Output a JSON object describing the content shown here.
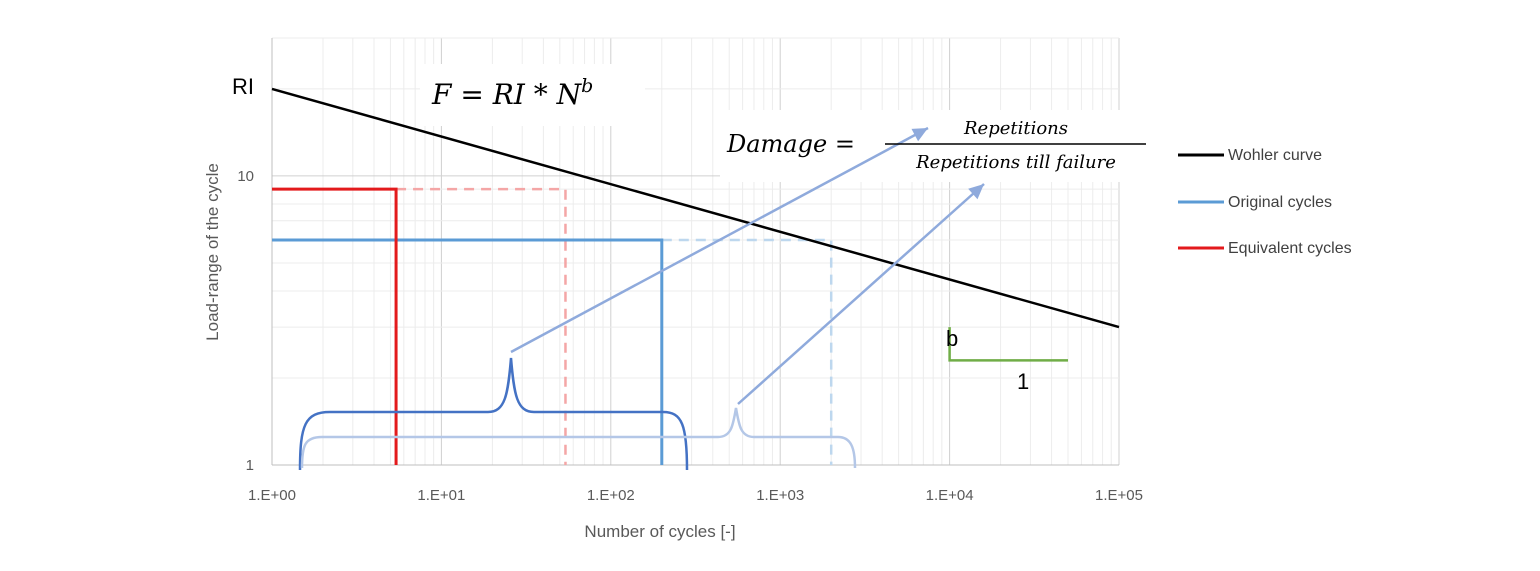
{
  "chart_data": {
    "type": "line",
    "xlabel": "Number of cycles [-]",
    "ylabel": "Load-range of the cycle",
    "x_scale": "log",
    "y_scale": "log",
    "xlim": [
      1,
      100000
    ],
    "ylim": [
      1,
      30
    ],
    "x_ticks": [
      "1.E+00",
      "1.E+01",
      "1.E+02",
      "1.E+03",
      "1.E+04",
      "1.E+05"
    ],
    "y_ticks": [
      "1",
      "10"
    ],
    "grid": true,
    "legend_position": "right",
    "series": [
      {
        "name": "Wohler curve",
        "color": "#000000",
        "x": [
          1,
          100000
        ],
        "y": [
          20,
          3
        ]
      },
      {
        "name": "Original cycles",
        "color": "#5b9bd5",
        "x": [
          1,
          200,
          200
        ],
        "y": [
          6,
          6,
          1
        ]
      },
      {
        "name": "Equivalent cycles",
        "color": "#e31a1c",
        "x": [
          1,
          5.4,
          5.4
        ],
        "y": [
          9,
          9,
          1
        ]
      }
    ],
    "dashed_guides": [
      {
        "color": "#f4a6a6",
        "x": [
          5.4,
          54,
          54
        ],
        "y": [
          9,
          9,
          1
        ]
      },
      {
        "color": "#bdd7ee",
        "x": [
          200,
          2000,
          2000
        ],
        "y": [
          6,
          6,
          1
        ]
      }
    ],
    "slope_triangle": {
      "color": "#70ad47",
      "x": [
        10000,
        50000
      ],
      "y": [
        3.0,
        2.3
      ]
    },
    "annotations": {
      "ri_label": "RI",
      "slope_label_b": "b",
      "slope_label_1": "1",
      "formula_lhs": "F = RI * N",
      "formula_exp": "b",
      "damage_label": "Damage =",
      "damage_numerator": "Repetitions",
      "damage_denominator": "Repetitions till failure"
    }
  }
}
